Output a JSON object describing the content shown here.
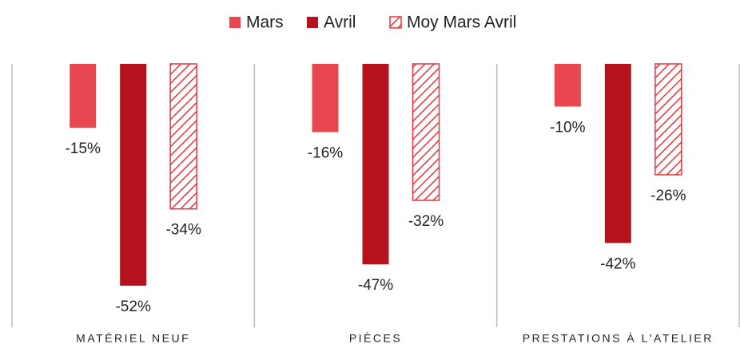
{
  "chart_data": {
    "type": "bar",
    "categories": [
      "MATÉRIEL NEUF",
      "PIÈCES",
      "PRESTATIONS À L'ATELIER"
    ],
    "series": [
      {
        "name": "Mars",
        "color": "#e8474f",
        "values": [
          -15,
          -16,
          -10
        ],
        "value_labels": [
          "-15%",
          "-16%",
          "-10%"
        ]
      },
      {
        "name": "Avril",
        "color": "#b5121b",
        "values": [
          -52,
          -47,
          -42
        ],
        "value_labels": [
          "-52%",
          "-47%",
          "-42%"
        ]
      },
      {
        "name": "Moy Mars Avril",
        "color": "#e8343a",
        "pattern": "hatch",
        "values": [
          -34,
          -32,
          -26
        ],
        "value_labels": [
          "-34%",
          "-32%",
          "-26%"
        ]
      }
    ],
    "ylim": [
      -61,
      0
    ],
    "legend": "top"
  }
}
